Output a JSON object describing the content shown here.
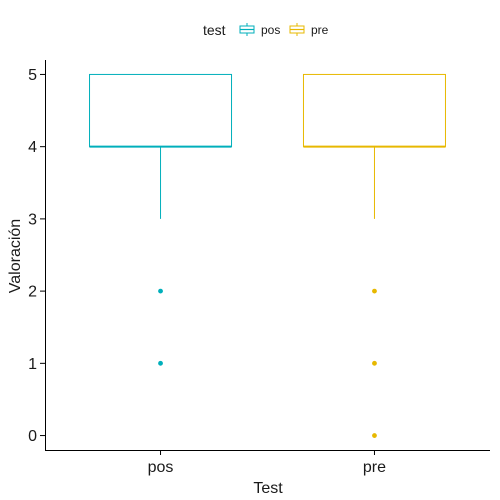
{
  "chart_data": {
    "type": "box",
    "xlabel": "Test",
    "ylabel": "Valoración",
    "ylim": [
      -0.2,
      5.2
    ],
    "yticks": [
      0,
      1,
      2,
      3,
      4,
      5
    ],
    "categories": [
      "pos",
      "pre"
    ],
    "legend": {
      "title": "test",
      "position": "top",
      "entries": [
        "pos",
        "pre"
      ]
    },
    "series": [
      {
        "name": "pos",
        "color": "#00AFBB",
        "min": 3,
        "q1": 4,
        "median": 4,
        "q3": 5,
        "max": 5,
        "outliers": [
          2,
          1
        ]
      },
      {
        "name": "pre",
        "color": "#E7B800",
        "min": 3,
        "q1": 4,
        "median": 4,
        "q3": 5,
        "max": 5,
        "outliers": [
          2,
          1,
          0
        ]
      }
    ]
  }
}
